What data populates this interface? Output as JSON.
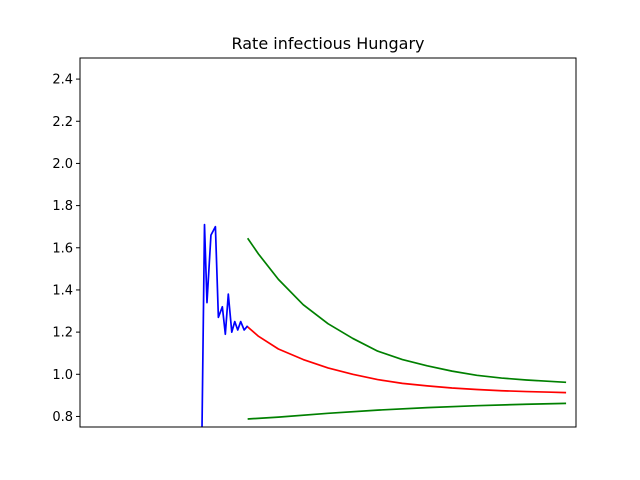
{
  "chart_data": {
    "type": "line",
    "title": "Rate infectious Hungary",
    "xlabel": "",
    "ylabel": "",
    "x_ticks_visible": false,
    "xlim": [
      0,
      100
    ],
    "ylim": [
      0.75,
      2.5
    ],
    "y_ticks": [
      0.8,
      1.0,
      1.2,
      1.4,
      1.6,
      1.8,
      2.0,
      2.2,
      2.4
    ],
    "y_tick_labels": [
      "0.8",
      "1.0",
      "1.2",
      "1.4",
      "1.6",
      "1.8",
      "2.0",
      "2.2",
      "2.4"
    ],
    "grid": false,
    "series": [
      {
        "color": "#0000ff",
        "x": [
          24.6,
          25.1,
          25.6,
          26.4,
          27.3,
          27.9,
          28.7,
          29.3,
          29.9,
          30.6,
          31.2,
          31.8,
          32.4,
          33.1,
          33.8
        ],
        "y": [
          0.75,
          1.71,
          1.34,
          1.66,
          1.7,
          1.27,
          1.32,
          1.19,
          1.38,
          1.2,
          1.25,
          1.21,
          1.25,
          1.21,
          1.23
        ]
      },
      {
        "color": "#ff0000",
        "x": [
          33.8,
          36,
          40,
          45,
          50,
          55,
          60,
          65,
          70,
          75,
          80,
          85,
          90,
          95,
          98
        ],
        "y": [
          1.225,
          1.18,
          1.12,
          1.07,
          1.03,
          1.0,
          0.975,
          0.957,
          0.945,
          0.935,
          0.928,
          0.922,
          0.918,
          0.915,
          0.913
        ]
      },
      {
        "color": "#008000",
        "x": [
          33.8,
          36,
          40,
          45,
          50,
          55,
          60,
          65,
          70,
          75,
          80,
          85,
          90,
          95,
          98
        ],
        "y": [
          1.645,
          1.57,
          1.45,
          1.33,
          1.24,
          1.17,
          1.11,
          1.07,
          1.04,
          1.015,
          0.995,
          0.982,
          0.973,
          0.966,
          0.962
        ]
      },
      {
        "color": "#008000",
        "x": [
          33.8,
          40,
          50,
          60,
          70,
          80,
          90,
          98
        ],
        "y": [
          0.788,
          0.797,
          0.815,
          0.83,
          0.842,
          0.851,
          0.858,
          0.862
        ]
      }
    ]
  }
}
